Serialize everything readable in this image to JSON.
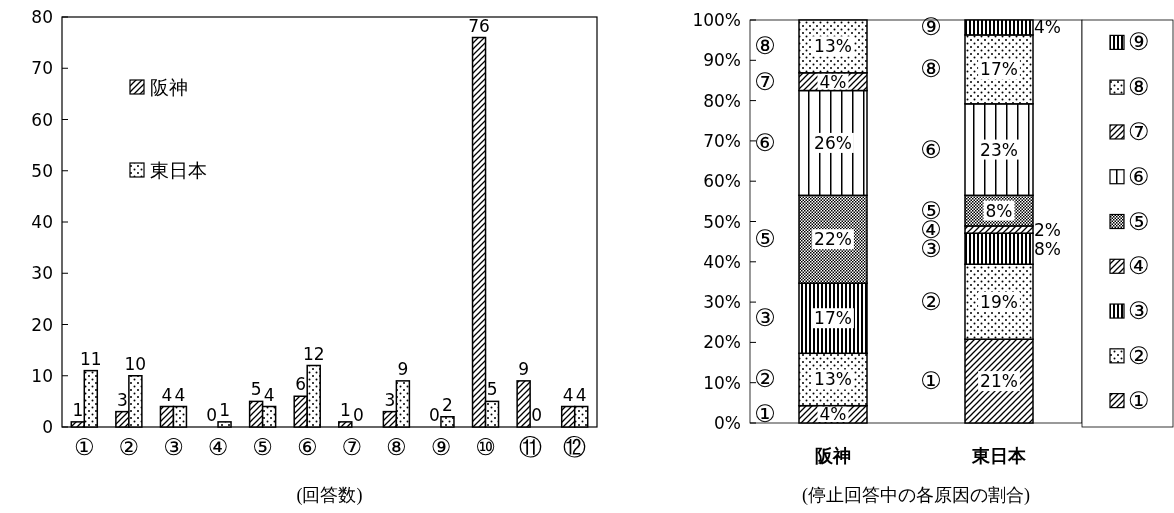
{
  "chart_data": [
    {
      "type": "bar",
      "categories": [
        "①",
        "②",
        "③",
        "④",
        "⑤",
        "⑥",
        "⑦",
        "⑧",
        "⑨",
        "⑩",
        "⑪",
        "⑫"
      ],
      "xlabel": "(回答数)",
      "ylim": [
        0,
        80
      ],
      "yticks": [
        0,
        10,
        20,
        30,
        40,
        50,
        60,
        70,
        80
      ],
      "data_labels": true,
      "legend": "top left",
      "series": [
        {
          "name": "阪神",
          "color": "#000000",
          "values": [
            1,
            3,
            4,
            0,
            5,
            6,
            1,
            3,
            0,
            76,
            9,
            4
          ]
        },
        {
          "name": "東日本",
          "color": "#000000",
          "values": [
            11,
            10,
            4,
            1,
            4,
            12,
            0,
            9,
            2,
            5,
            0,
            4
          ]
        }
      ]
    },
    {
      "type": "bar",
      "stacked": true,
      "categories": [
        "阪神",
        "東日本"
      ],
      "xlabel": "(停止回答中の各原因の割合)",
      "ylim": [
        0,
        100
      ],
      "yticks": [
        {
          "value": 0,
          "label": "0%"
        },
        {
          "value": 10,
          "label": "10%"
        },
        {
          "value": 20,
          "label": "20%"
        },
        {
          "value": 30,
          "label": "30%"
        },
        {
          "value": 40,
          "label": "40%"
        },
        {
          "value": 50,
          "label": "50%"
        },
        {
          "value": 60,
          "label": "60%"
        },
        {
          "value": 70,
          "label": "70%"
        },
        {
          "value": 80,
          "label": "80%"
        },
        {
          "value": 90,
          "label": "90%"
        },
        {
          "value": 100,
          "label": "100%"
        }
      ],
      "legend": "right",
      "series": [
        {
          "name": "①",
          "color": "#000000",
          "values": [
            4.3,
            20.8
          ],
          "value_labels": [
            "4%",
            "21%"
          ]
        },
        {
          "name": "②",
          "color": "#000000",
          "values": [
            13,
            18.6
          ],
          "value_labels": [
            "13%",
            "19%"
          ]
        },
        {
          "name": "③",
          "color": "#000000",
          "values": [
            17.4,
            7.7
          ],
          "value_labels": [
            "17%",
            "8%"
          ]
        },
        {
          "name": "④",
          "color": "#000000",
          "values": [
            0,
            1.8
          ],
          "value_labels": [
            null,
            "2%"
          ]
        },
        {
          "name": "⑤",
          "color": "#000000",
          "values": [
            21.8,
            7.6
          ],
          "value_labels": [
            "22%",
            "8%"
          ]
        },
        {
          "name": "⑥",
          "color": "#000000",
          "values": [
            26,
            22.7
          ],
          "value_labels": [
            "26%",
            "23%"
          ]
        },
        {
          "name": "⑦",
          "color": "#000000",
          "values": [
            4.4,
            0
          ],
          "value_labels": [
            "4%",
            null
          ]
        },
        {
          "name": "⑧",
          "color": "#000000",
          "values": [
            13.1,
            17.1
          ],
          "value_labels": [
            "13%",
            "17%"
          ]
        },
        {
          "name": "⑨",
          "color": "#000000",
          "values": [
            0,
            3.7
          ],
          "value_labels": [
            null,
            "4%"
          ]
        }
      ]
    }
  ]
}
